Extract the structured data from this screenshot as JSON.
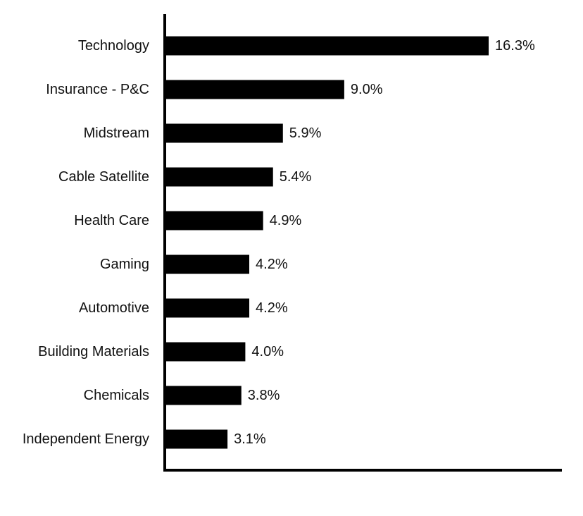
{
  "chart_data": {
    "type": "bar",
    "orientation": "horizontal",
    "title": "",
    "xlabel": "",
    "ylabel": "",
    "categories": [
      "Technology",
      "Insurance - P&C",
      "Midstream",
      "Cable Satellite",
      "Health Care",
      "Gaming",
      "Automotive",
      "Building Materials",
      "Chemicals",
      "Independent Energy"
    ],
    "values": [
      16.3,
      9.0,
      5.9,
      5.4,
      4.9,
      4.2,
      4.2,
      4.0,
      3.8,
      3.1
    ],
    "data_labels": [
      "16.3%",
      "9.0%",
      "5.9%",
      "5.4%",
      "4.9%",
      "4.2%",
      "4.2%",
      "4.0%",
      "3.8%",
      "3.1%"
    ],
    "unit": "%",
    "grid": false,
    "legend": "none",
    "bar_color": "#000000",
    "axis_color": "#000000"
  }
}
